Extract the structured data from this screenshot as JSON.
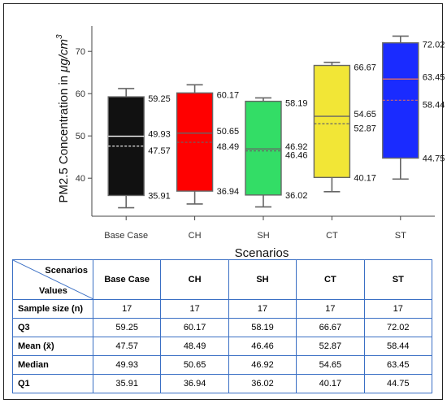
{
  "chart_data": {
    "type": "box",
    "xlabel": "Scenarios",
    "ylabel_prefix": "PM2.5 Concentration in ",
    "ylabel_unit": "μg/cm",
    "ylabel_exp": "3",
    "ylim": [
      31,
      76
    ],
    "yticks": [
      40,
      50,
      60,
      70
    ],
    "grid": false,
    "categories": [
      "Base Case",
      "CH",
      "SH",
      "CT",
      "ST"
    ],
    "series": [
      {
        "category": "Base Case",
        "color": "#111111",
        "median_color": "#ffffff",
        "whisker_low": 33,
        "q1": 35.91,
        "median": 49.93,
        "mean": 47.57,
        "q3": 59.25,
        "whisker_high": 61.2
      },
      {
        "category": "CH",
        "color": "#ff0000",
        "median_color": "#666666",
        "whisker_low": 33.9,
        "q1": 36.94,
        "median": 50.65,
        "mean": 48.49,
        "q3": 60.17,
        "whisker_high": 62.1
      },
      {
        "category": "SH",
        "color": "#33dd66",
        "median_color": "#666666",
        "whisker_low": 33.2,
        "q1": 36.02,
        "median": 46.92,
        "mean": 46.46,
        "q3": 58.19,
        "whisker_high": 59.0
      },
      {
        "category": "CT",
        "color": "#f2e636",
        "median_color": "#666666",
        "whisker_low": 36.8,
        "q1": 40.17,
        "median": 54.65,
        "mean": 52.87,
        "q3": 66.67,
        "whisker_high": 67.4
      },
      {
        "category": "ST",
        "color": "#1a2bff",
        "median_color": "#d46a6a",
        "whisker_low": 39.8,
        "q1": 44.75,
        "median": 63.45,
        "mean": 58.44,
        "q3": 72.02,
        "whisker_high": 73.6
      }
    ],
    "labels": {
      "Base Case": {
        "q3": "59.25",
        "median": "49.93",
        "mean": "47.57",
        "q1": "35.91"
      },
      "CH": {
        "q3": "60.17",
        "median": "50.65",
        "mean": "48.49",
        "q1": "36.94"
      },
      "SH": {
        "q3": "58.19",
        "median": "46.92",
        "mean": "46.46",
        "q1": "36.02"
      },
      "CT": {
        "q3": "66.67",
        "median": "54.65",
        "mean": "52.87",
        "q1": "40.17"
      },
      "ST": {
        "q3": "72.02",
        "median": "63.45",
        "mean": "58.44",
        "q1": "44.75"
      }
    }
  },
  "table": {
    "corner_top": "Scenarios",
    "corner_bottom": "Values",
    "columns": [
      "Base Case",
      "CH",
      "SH",
      "CT",
      "ST"
    ],
    "rows": [
      {
        "label": "Sample size (n)",
        "values": [
          "17",
          "17",
          "17",
          "17",
          "17"
        ]
      },
      {
        "label": "Q3",
        "values": [
          "59.25",
          "60.17",
          "58.19",
          "66.67",
          "72.02"
        ]
      },
      {
        "label": "Mean (x̄)",
        "values": [
          "47.57",
          "48.49",
          "46.46",
          "52.87",
          "58.44"
        ]
      },
      {
        "label": "Median",
        "values": [
          "49.93",
          "50.65",
          "46.92",
          "54.65",
          "63.45"
        ]
      },
      {
        "label": "Q1",
        "values": [
          "35.91",
          "36.94",
          "36.02",
          "40.17",
          "44.75"
        ]
      }
    ]
  }
}
